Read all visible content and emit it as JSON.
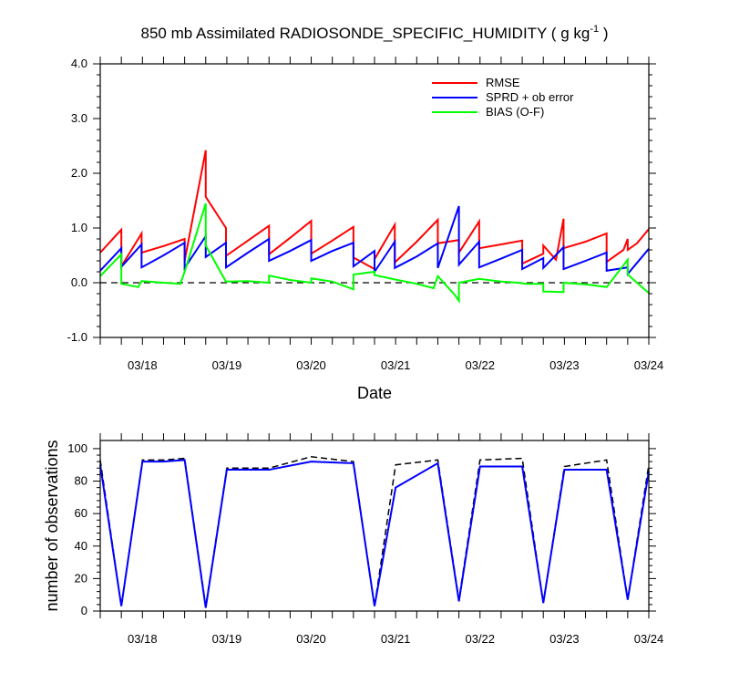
{
  "title": {
    "main": "850 mb Assimilated RADIOSONDE_SPECIFIC_HUMIDITY ( g kg",
    "superscript": "-1",
    "closing": " )"
  },
  "chart_data": [
    {
      "type": "line",
      "xlabel": "Date",
      "ylabel": "",
      "x_unit": "day",
      "xlim": [
        17.5,
        24.0
      ],
      "ylim": [
        -1.0,
        4.0
      ],
      "y_ticks": [
        -1.0,
        0.0,
        1.0,
        2.0,
        3.0,
        4.0
      ],
      "y_tick_labels": [
        "-1.0",
        "0.0",
        "1.0",
        "2.0",
        "3.0",
        "4.0"
      ],
      "x_ticks": [
        18.0,
        19.0,
        20.0,
        21.0,
        22.0,
        23.0,
        24.0
      ],
      "x_tick_labels": [
        "03/18",
        "03/19",
        "03/20",
        "03/21",
        "03/22",
        "03/23",
        "03/24"
      ],
      "zero_line": true,
      "legend_position": "top-right",
      "series": [
        {
          "name": "RMSE",
          "color": "#ff0000",
          "points": [
            [
              17.5,
              0.55
            ],
            [
              17.75,
              0.97
            ],
            [
              17.75,
              0.3
            ],
            [
              17.99,
              0.9
            ],
            [
              17.99,
              0.55
            ],
            [
              18.25,
              0.67
            ],
            [
              18.5,
              0.8
            ],
            [
              18.5,
              0.4
            ],
            [
              18.75,
              2.42
            ],
            [
              18.75,
              1.57
            ],
            [
              18.99,
              1.0
            ],
            [
              18.99,
              0.49
            ],
            [
              19.25,
              0.77
            ],
            [
              19.5,
              1.04
            ],
            [
              19.5,
              0.52
            ],
            [
              19.75,
              0.82
            ],
            [
              20.0,
              1.13
            ],
            [
              20.0,
              0.53
            ],
            [
              20.25,
              0.77
            ],
            [
              20.5,
              1.02
            ],
            [
              20.5,
              0.46
            ],
            [
              20.75,
              0.25
            ],
            [
              20.75,
              0.43
            ],
            [
              20.99,
              1.06
            ],
            [
              20.99,
              0.37
            ],
            [
              21.25,
              0.75
            ],
            [
              21.5,
              1.15
            ],
            [
              21.5,
              0.72
            ],
            [
              21.75,
              0.78
            ],
            [
              21.75,
              0.55
            ],
            [
              21.99,
              1.12
            ],
            [
              21.99,
              0.63
            ],
            [
              22.25,
              0.7
            ],
            [
              22.5,
              0.77
            ],
            [
              22.5,
              0.35
            ],
            [
              22.75,
              0.53
            ],
            [
              22.75,
              0.68
            ],
            [
              22.9,
              0.42
            ],
            [
              22.99,
              1.17
            ],
            [
              22.99,
              0.63
            ],
            [
              23.25,
              0.75
            ],
            [
              23.5,
              0.9
            ],
            [
              23.5,
              0.38
            ],
            [
              23.7,
              0.6
            ],
            [
              23.75,
              0.8
            ],
            [
              23.75,
              0.6
            ],
            [
              23.86,
              0.72
            ],
            [
              24.0,
              0.98
            ]
          ]
        },
        {
          "name": "SPRD + ob error",
          "color": "#0000ff",
          "points": [
            [
              17.5,
              0.22
            ],
            [
              17.75,
              0.63
            ],
            [
              17.75,
              0.29
            ],
            [
              17.99,
              0.7
            ],
            [
              17.99,
              0.28
            ],
            [
              18.25,
              0.5
            ],
            [
              18.5,
              0.73
            ],
            [
              18.5,
              0.27
            ],
            [
              18.75,
              0.85
            ],
            [
              18.75,
              0.47
            ],
            [
              18.99,
              0.73
            ],
            [
              18.99,
              0.28
            ],
            [
              19.25,
              0.55
            ],
            [
              19.5,
              0.8
            ],
            [
              19.5,
              0.4
            ],
            [
              19.75,
              0.58
            ],
            [
              20.0,
              0.78
            ],
            [
              20.0,
              0.4
            ],
            [
              20.25,
              0.58
            ],
            [
              20.5,
              0.73
            ],
            [
              20.5,
              0.3
            ],
            [
              20.75,
              0.58
            ],
            [
              20.75,
              0.2
            ],
            [
              20.99,
              0.75
            ],
            [
              20.99,
              0.27
            ],
            [
              21.25,
              0.48
            ],
            [
              21.5,
              0.72
            ],
            [
              21.5,
              0.27
            ],
            [
              21.75,
              1.4
            ],
            [
              21.75,
              0.33
            ],
            [
              21.99,
              0.75
            ],
            [
              21.99,
              0.28
            ],
            [
              22.25,
              0.44
            ],
            [
              22.5,
              0.6
            ],
            [
              22.5,
              0.25
            ],
            [
              22.75,
              0.45
            ],
            [
              22.75,
              0.27
            ],
            [
              22.99,
              0.65
            ],
            [
              22.99,
              0.25
            ],
            [
              23.25,
              0.4
            ],
            [
              23.5,
              0.55
            ],
            [
              23.5,
              0.22
            ],
            [
              23.75,
              0.28
            ],
            [
              23.75,
              0.16
            ],
            [
              24.0,
              0.62
            ]
          ]
        },
        {
          "name": "BIAS (O-F)",
          "color": "#00ff00",
          "points": [
            [
              17.5,
              0.12
            ],
            [
              17.75,
              0.52
            ],
            [
              17.75,
              -0.02
            ],
            [
              17.95,
              -0.08
            ],
            [
              17.99,
              0.03
            ],
            [
              18.25,
              0.0
            ],
            [
              18.45,
              -0.02
            ],
            [
              18.5,
              0.2
            ],
            [
              18.75,
              1.45
            ],
            [
              18.75,
              0.68
            ],
            [
              18.99,
              0.02
            ],
            [
              19.25,
              0.03
            ],
            [
              19.5,
              0.0
            ],
            [
              19.5,
              0.13
            ],
            [
              19.75,
              0.05
            ],
            [
              20.0,
              0.0
            ],
            [
              20.0,
              0.08
            ],
            [
              20.25,
              0.02
            ],
            [
              20.5,
              -0.12
            ],
            [
              20.5,
              0.15
            ],
            [
              20.75,
              0.2
            ],
            [
              20.75,
              0.14
            ],
            [
              20.99,
              0.06
            ],
            [
              21.25,
              -0.02
            ],
            [
              21.45,
              -0.1
            ],
            [
              21.5,
              0.12
            ],
            [
              21.7,
              -0.22
            ],
            [
              21.75,
              -0.33
            ],
            [
              21.75,
              0.0
            ],
            [
              21.99,
              0.07
            ],
            [
              22.25,
              0.02
            ],
            [
              22.45,
              0.0
            ],
            [
              22.55,
              -0.02
            ],
            [
              22.75,
              -0.02
            ],
            [
              22.75,
              -0.16
            ],
            [
              22.99,
              -0.17
            ],
            [
              22.99,
              0.0
            ],
            [
              23.25,
              -0.03
            ],
            [
              23.5,
              -0.08
            ],
            [
              23.75,
              0.42
            ],
            [
              23.75,
              0.15
            ],
            [
              24.0,
              -0.19
            ]
          ]
        }
      ]
    },
    {
      "type": "line",
      "xlabel": "",
      "ylabel": "number of observations",
      "x_unit": "day",
      "xlim": [
        17.5,
        24.0
      ],
      "ylim": [
        0,
        105
      ],
      "y_ticks": [
        0,
        20,
        40,
        60,
        80,
        100
      ],
      "y_tick_labels": [
        "0",
        "20",
        "40",
        "60",
        "80",
        "100"
      ],
      "x_ticks": [
        18.0,
        19.0,
        20.0,
        21.0,
        22.0,
        23.0,
        24.0
      ],
      "x_tick_labels": [
        "03/18",
        "03/19",
        "03/20",
        "03/21",
        "03/22",
        "03/23",
        "03/24"
      ],
      "series": [
        {
          "name": "",
          "color": "#000000",
          "dash": true,
          "points": [
            [
              17.5,
              93
            ],
            [
              17.75,
              3
            ],
            [
              18.0,
              93
            ],
            [
              18.25,
              93
            ],
            [
              18.5,
              94
            ],
            [
              18.75,
              3
            ],
            [
              19.0,
              88
            ],
            [
              19.25,
              88
            ],
            [
              19.5,
              88
            ],
            [
              20.0,
              95
            ],
            [
              20.5,
              92
            ],
            [
              20.75,
              3
            ],
            [
              21.0,
              90
            ],
            [
              21.5,
              93
            ],
            [
              21.75,
              7
            ],
            [
              22.0,
              93
            ],
            [
              22.5,
              94
            ],
            [
              22.75,
              5
            ],
            [
              23.0,
              89
            ],
            [
              23.5,
              93
            ],
            [
              23.75,
              7
            ],
            [
              24.0,
              90
            ]
          ]
        },
        {
          "name": "",
          "color": "#0000ff",
          "dash": false,
          "points": [
            [
              17.5,
              90
            ],
            [
              17.75,
              3
            ],
            [
              18.0,
              92
            ],
            [
              18.25,
              92
            ],
            [
              18.5,
              93
            ],
            [
              18.75,
              2
            ],
            [
              19.0,
              87
            ],
            [
              19.25,
              87
            ],
            [
              19.5,
              87
            ],
            [
              20.0,
              92
            ],
            [
              20.5,
              91
            ],
            [
              20.75,
              3
            ],
            [
              21.0,
              76
            ],
            [
              21.5,
              91
            ],
            [
              21.75,
              6
            ],
            [
              22.0,
              89
            ],
            [
              22.5,
              89
            ],
            [
              22.75,
              5
            ],
            [
              23.0,
              87
            ],
            [
              23.5,
              87
            ],
            [
              23.75,
              7
            ],
            [
              24.0,
              86
            ]
          ]
        }
      ]
    }
  ]
}
